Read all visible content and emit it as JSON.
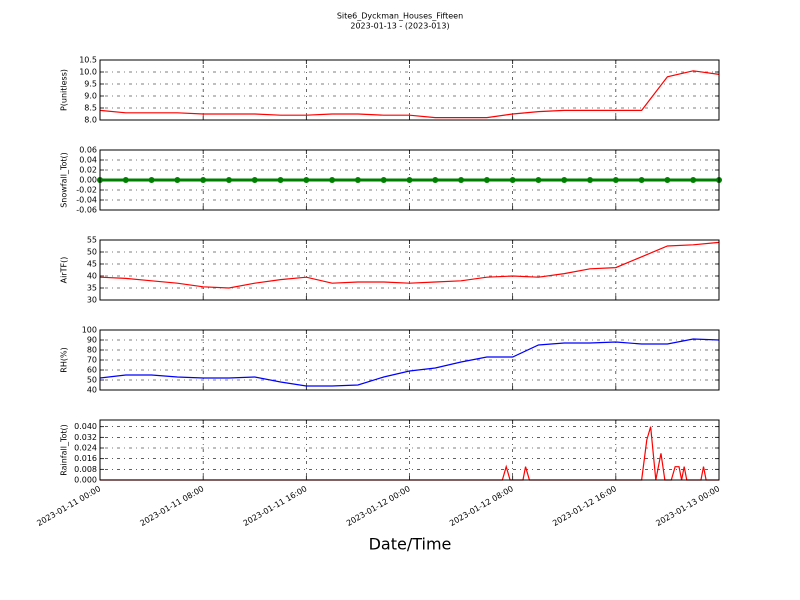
{
  "title": "Site6_Dyckman_Houses_Fifteen",
  "subtitle": "2023-01-13 - (2023-013)",
  "xlabel": "Date/Time",
  "chart_data": [
    {
      "type": "line",
      "ylabel": "P(unitless)",
      "color": "#ff0000",
      "grid": true,
      "xlim": [
        "2023-01-11 00:00",
        "2023-01-13 00:00"
      ],
      "xticks": [
        "2023-01-11 00:00",
        "2023-01-11 08:00",
        "2023-01-11 16:00",
        "2023-01-12 00:00",
        "2023-01-12 08:00",
        "2023-01-12 16:00",
        "2023-01-13 00:00"
      ],
      "ylim": [
        8,
        10.5
      ],
      "yticks": [
        {
          "value": 8,
          "label": "8.0"
        },
        8.5,
        {
          "value": 9,
          "label": "9.0"
        },
        9.5,
        {
          "value": 10,
          "label": "10.0"
        },
        10.5
      ],
      "x": [
        "2023-01-11 00:00",
        "2023-01-11 02:00",
        "2023-01-11 04:00",
        "2023-01-11 06:00",
        "2023-01-11 08:00",
        "2023-01-11 10:00",
        "2023-01-11 12:00",
        "2023-01-11 14:00",
        "2023-01-11 16:00",
        "2023-01-11 18:00",
        "2023-01-11 20:00",
        "2023-01-11 22:00",
        "2023-01-12 00:00",
        "2023-01-12 02:00",
        "2023-01-12 04:00",
        "2023-01-12 06:00",
        "2023-01-12 08:00",
        "2023-01-12 10:00",
        "2023-01-12 12:00",
        "2023-01-12 14:00",
        "2023-01-12 16:00",
        "2023-01-12 18:00",
        "2023-01-12 20:00",
        "2023-01-12 22:00",
        "2023-01-13 00:00"
      ],
      "values": [
        8.4,
        8.3,
        8.3,
        8.3,
        8.25,
        8.25,
        8.25,
        8.2,
        8.2,
        8.25,
        8.25,
        8.2,
        8.2,
        8.1,
        8.1,
        8.1,
        8.25,
        8.35,
        8.4,
        8.4,
        8.4,
        8.4,
        9.8,
        10.05,
        9.9
      ]
    },
    {
      "type": "line",
      "ylabel": "Snowfall_Tot()",
      "color": "#008000",
      "marker": "circle",
      "grid": true,
      "xlim": [
        "2023-01-11 00:00",
        "2023-01-13 00:00"
      ],
      "xticks": [
        "2023-01-11 00:00",
        "2023-01-11 08:00",
        "2023-01-11 16:00",
        "2023-01-12 00:00",
        "2023-01-12 08:00",
        "2023-01-12 16:00",
        "2023-01-13 00:00"
      ],
      "ylim": [
        -0.06,
        0.06
      ],
      "yticks": [
        -0.06,
        -0.04,
        -0.02,
        {
          "value": 0,
          "label": "0.00"
        },
        0.02,
        0.04,
        0.06
      ],
      "x": [
        "2023-01-11 00:00",
        "2023-01-11 02:00",
        "2023-01-11 04:00",
        "2023-01-11 06:00",
        "2023-01-11 08:00",
        "2023-01-11 10:00",
        "2023-01-11 12:00",
        "2023-01-11 14:00",
        "2023-01-11 16:00",
        "2023-01-11 18:00",
        "2023-01-11 20:00",
        "2023-01-11 22:00",
        "2023-01-12 00:00",
        "2023-01-12 02:00",
        "2023-01-12 04:00",
        "2023-01-12 06:00",
        "2023-01-12 08:00",
        "2023-01-12 10:00",
        "2023-01-12 12:00",
        "2023-01-12 14:00",
        "2023-01-12 16:00",
        "2023-01-12 18:00",
        "2023-01-12 20:00",
        "2023-01-12 22:00",
        "2023-01-13 00:00"
      ],
      "values": [
        0,
        0,
        0,
        0,
        0,
        0,
        0,
        0,
        0,
        0,
        0,
        0,
        0,
        0,
        0,
        0,
        0,
        0,
        0,
        0,
        0,
        0,
        0,
        0,
        0
      ]
    },
    {
      "type": "line",
      "ylabel": "AirTF()",
      "color": "#ff0000",
      "grid": true,
      "xlim": [
        "2023-01-11 00:00",
        "2023-01-13 00:00"
      ],
      "xticks": [
        "2023-01-11 00:00",
        "2023-01-11 08:00",
        "2023-01-11 16:00",
        "2023-01-12 00:00",
        "2023-01-12 08:00",
        "2023-01-12 16:00",
        "2023-01-13 00:00"
      ],
      "ylim": [
        30,
        55
      ],
      "yticks": [
        30,
        35,
        40,
        45,
        50,
        55
      ],
      "x": [
        "2023-01-11 00:00",
        "2023-01-11 02:00",
        "2023-01-11 04:00",
        "2023-01-11 06:00",
        "2023-01-11 08:00",
        "2023-01-11 10:00",
        "2023-01-11 12:00",
        "2023-01-11 14:00",
        "2023-01-11 16:00",
        "2023-01-11 18:00",
        "2023-01-11 20:00",
        "2023-01-11 22:00",
        "2023-01-12 00:00",
        "2023-01-12 02:00",
        "2023-01-12 04:00",
        "2023-01-12 06:00",
        "2023-01-12 08:00",
        "2023-01-12 10:00",
        "2023-01-12 12:00",
        "2023-01-12 14:00",
        "2023-01-12 16:00",
        "2023-01-12 18:00",
        "2023-01-12 20:00",
        "2023-01-12 22:00",
        "2023-01-13 00:00"
      ],
      "values": [
        39.5,
        39,
        38,
        37,
        35.5,
        35,
        37,
        38.5,
        39.5,
        37,
        37.5,
        37.5,
        37,
        37.5,
        38,
        39.5,
        40,
        39.5,
        41,
        43,
        43.5,
        48,
        52.5,
        53,
        54
      ]
    },
    {
      "type": "line",
      "ylabel": "RH(%)",
      "color": "#0000ff",
      "grid": true,
      "xlim": [
        "2023-01-11 00:00",
        "2023-01-13 00:00"
      ],
      "xticks": [
        "2023-01-11 00:00",
        "2023-01-11 08:00",
        "2023-01-11 16:00",
        "2023-01-12 00:00",
        "2023-01-12 08:00",
        "2023-01-12 16:00",
        "2023-01-13 00:00"
      ],
      "ylim": [
        40,
        100
      ],
      "yticks": [
        40,
        50,
        60,
        70,
        80,
        90,
        100
      ],
      "x": [
        "2023-01-11 00:00",
        "2023-01-11 02:00",
        "2023-01-11 04:00",
        "2023-01-11 06:00",
        "2023-01-11 08:00",
        "2023-01-11 10:00",
        "2023-01-11 12:00",
        "2023-01-11 14:00",
        "2023-01-11 16:00",
        "2023-01-11 18:00",
        "2023-01-11 20:00",
        "2023-01-11 22:00",
        "2023-01-12 00:00",
        "2023-01-12 02:00",
        "2023-01-12 04:00",
        "2023-01-12 06:00",
        "2023-01-12 08:00",
        "2023-01-12 10:00",
        "2023-01-12 12:00",
        "2023-01-12 14:00",
        "2023-01-12 16:00",
        "2023-01-12 18:00",
        "2023-01-12 20:00",
        "2023-01-12 22:00",
        "2023-01-13 00:00"
      ],
      "values": [
        52,
        55,
        55,
        53,
        52,
        52,
        53,
        48,
        44,
        44,
        45,
        53,
        59,
        62,
        68,
        73,
        73,
        85,
        87,
        87,
        88,
        86,
        86,
        91,
        90
      ]
    },
    {
      "type": "line",
      "ylabel": "Rainfall_Tot()",
      "color": "#ff0000",
      "grid": true,
      "xlim": [
        "2023-01-11 00:00",
        "2023-01-13 00:00"
      ],
      "xticks": [
        "2023-01-11 00:00",
        "2023-01-11 08:00",
        "2023-01-11 16:00",
        "2023-01-12 00:00",
        "2023-01-12 08:00",
        "2023-01-12 16:00",
        "2023-01-13 00:00"
      ],
      "ylim": [
        0,
        0.045
      ],
      "yticks": [
        {
          "value": 0,
          "label": "0.000"
        },
        0.008,
        0.016,
        0.024,
        0.032,
        {
          "value": 0.04,
          "label": "0.040"
        }
      ],
      "x": [
        "2023-01-11 00:00",
        "2023-01-12 07:12",
        "2023-01-12 07:30",
        "2023-01-12 07:48",
        "2023-01-12 08:48",
        "2023-01-12 09:00",
        "2023-01-12 09:18",
        "2023-01-12 18:00",
        "2023-01-12 18:24",
        "2023-01-12 18:42",
        "2023-01-12 19:06",
        "2023-01-12 19:30",
        "2023-01-12 19:48",
        "2023-01-12 20:18",
        "2023-01-12 20:36",
        "2023-01-12 20:54",
        "2023-01-12 21:06",
        "2023-01-12 21:18",
        "2023-01-12 21:30",
        "2023-01-12 22:36",
        "2023-01-12 22:48",
        "2023-01-12 23:00",
        "2023-01-13 00:00"
      ],
      "values": [
        0,
        0,
        0.01,
        0,
        0,
        0.01,
        0,
        0,
        0.03,
        0.04,
        0,
        0.02,
        0,
        0,
        0.01,
        0.01,
        0,
        0.01,
        0,
        0,
        0.01,
        0,
        0
      ]
    }
  ]
}
